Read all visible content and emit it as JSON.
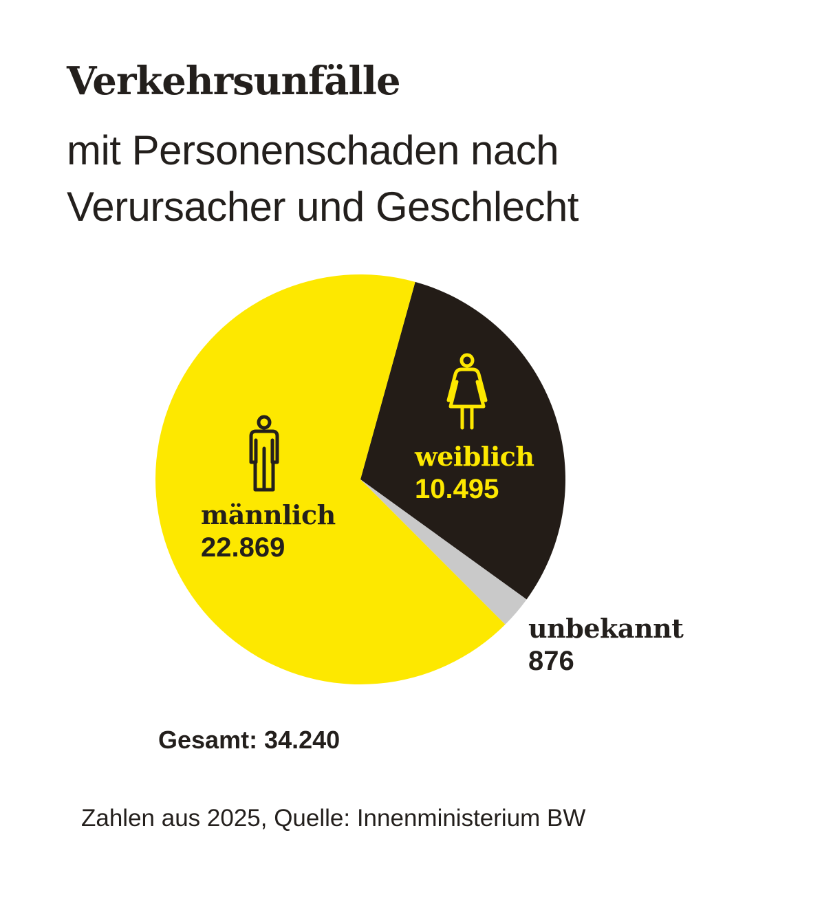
{
  "colors": {
    "background": "#ffffff",
    "text": "#231f1c",
    "maennlich": "#fde800",
    "weiblich": "#231c17",
    "unbekannt": "#c9c9c9",
    "label_on_dark": "#fde800",
    "label_on_yellow": "#231f1c"
  },
  "icons": {
    "maennlich": "male-person-icon",
    "weiblich": "female-person-icon"
  },
  "chart_data": {
    "type": "pie",
    "title": "Verkehrsunfälle",
    "subtitle_lines": [
      "mit Personenschaden nach",
      "Verursacher und Geschlecht"
    ],
    "slices": [
      {
        "label": "männlich",
        "value": 22869,
        "value_text": "22.869"
      },
      {
        "label": "weiblich",
        "value": 10495,
        "value_text": "10.495"
      },
      {
        "label": "unbekannt",
        "value": 876,
        "value_text": "876"
      }
    ],
    "total_text": "Gesamt: 34.240",
    "source": "Zahlen aus 2025, Quelle: Innenministerium BW"
  }
}
